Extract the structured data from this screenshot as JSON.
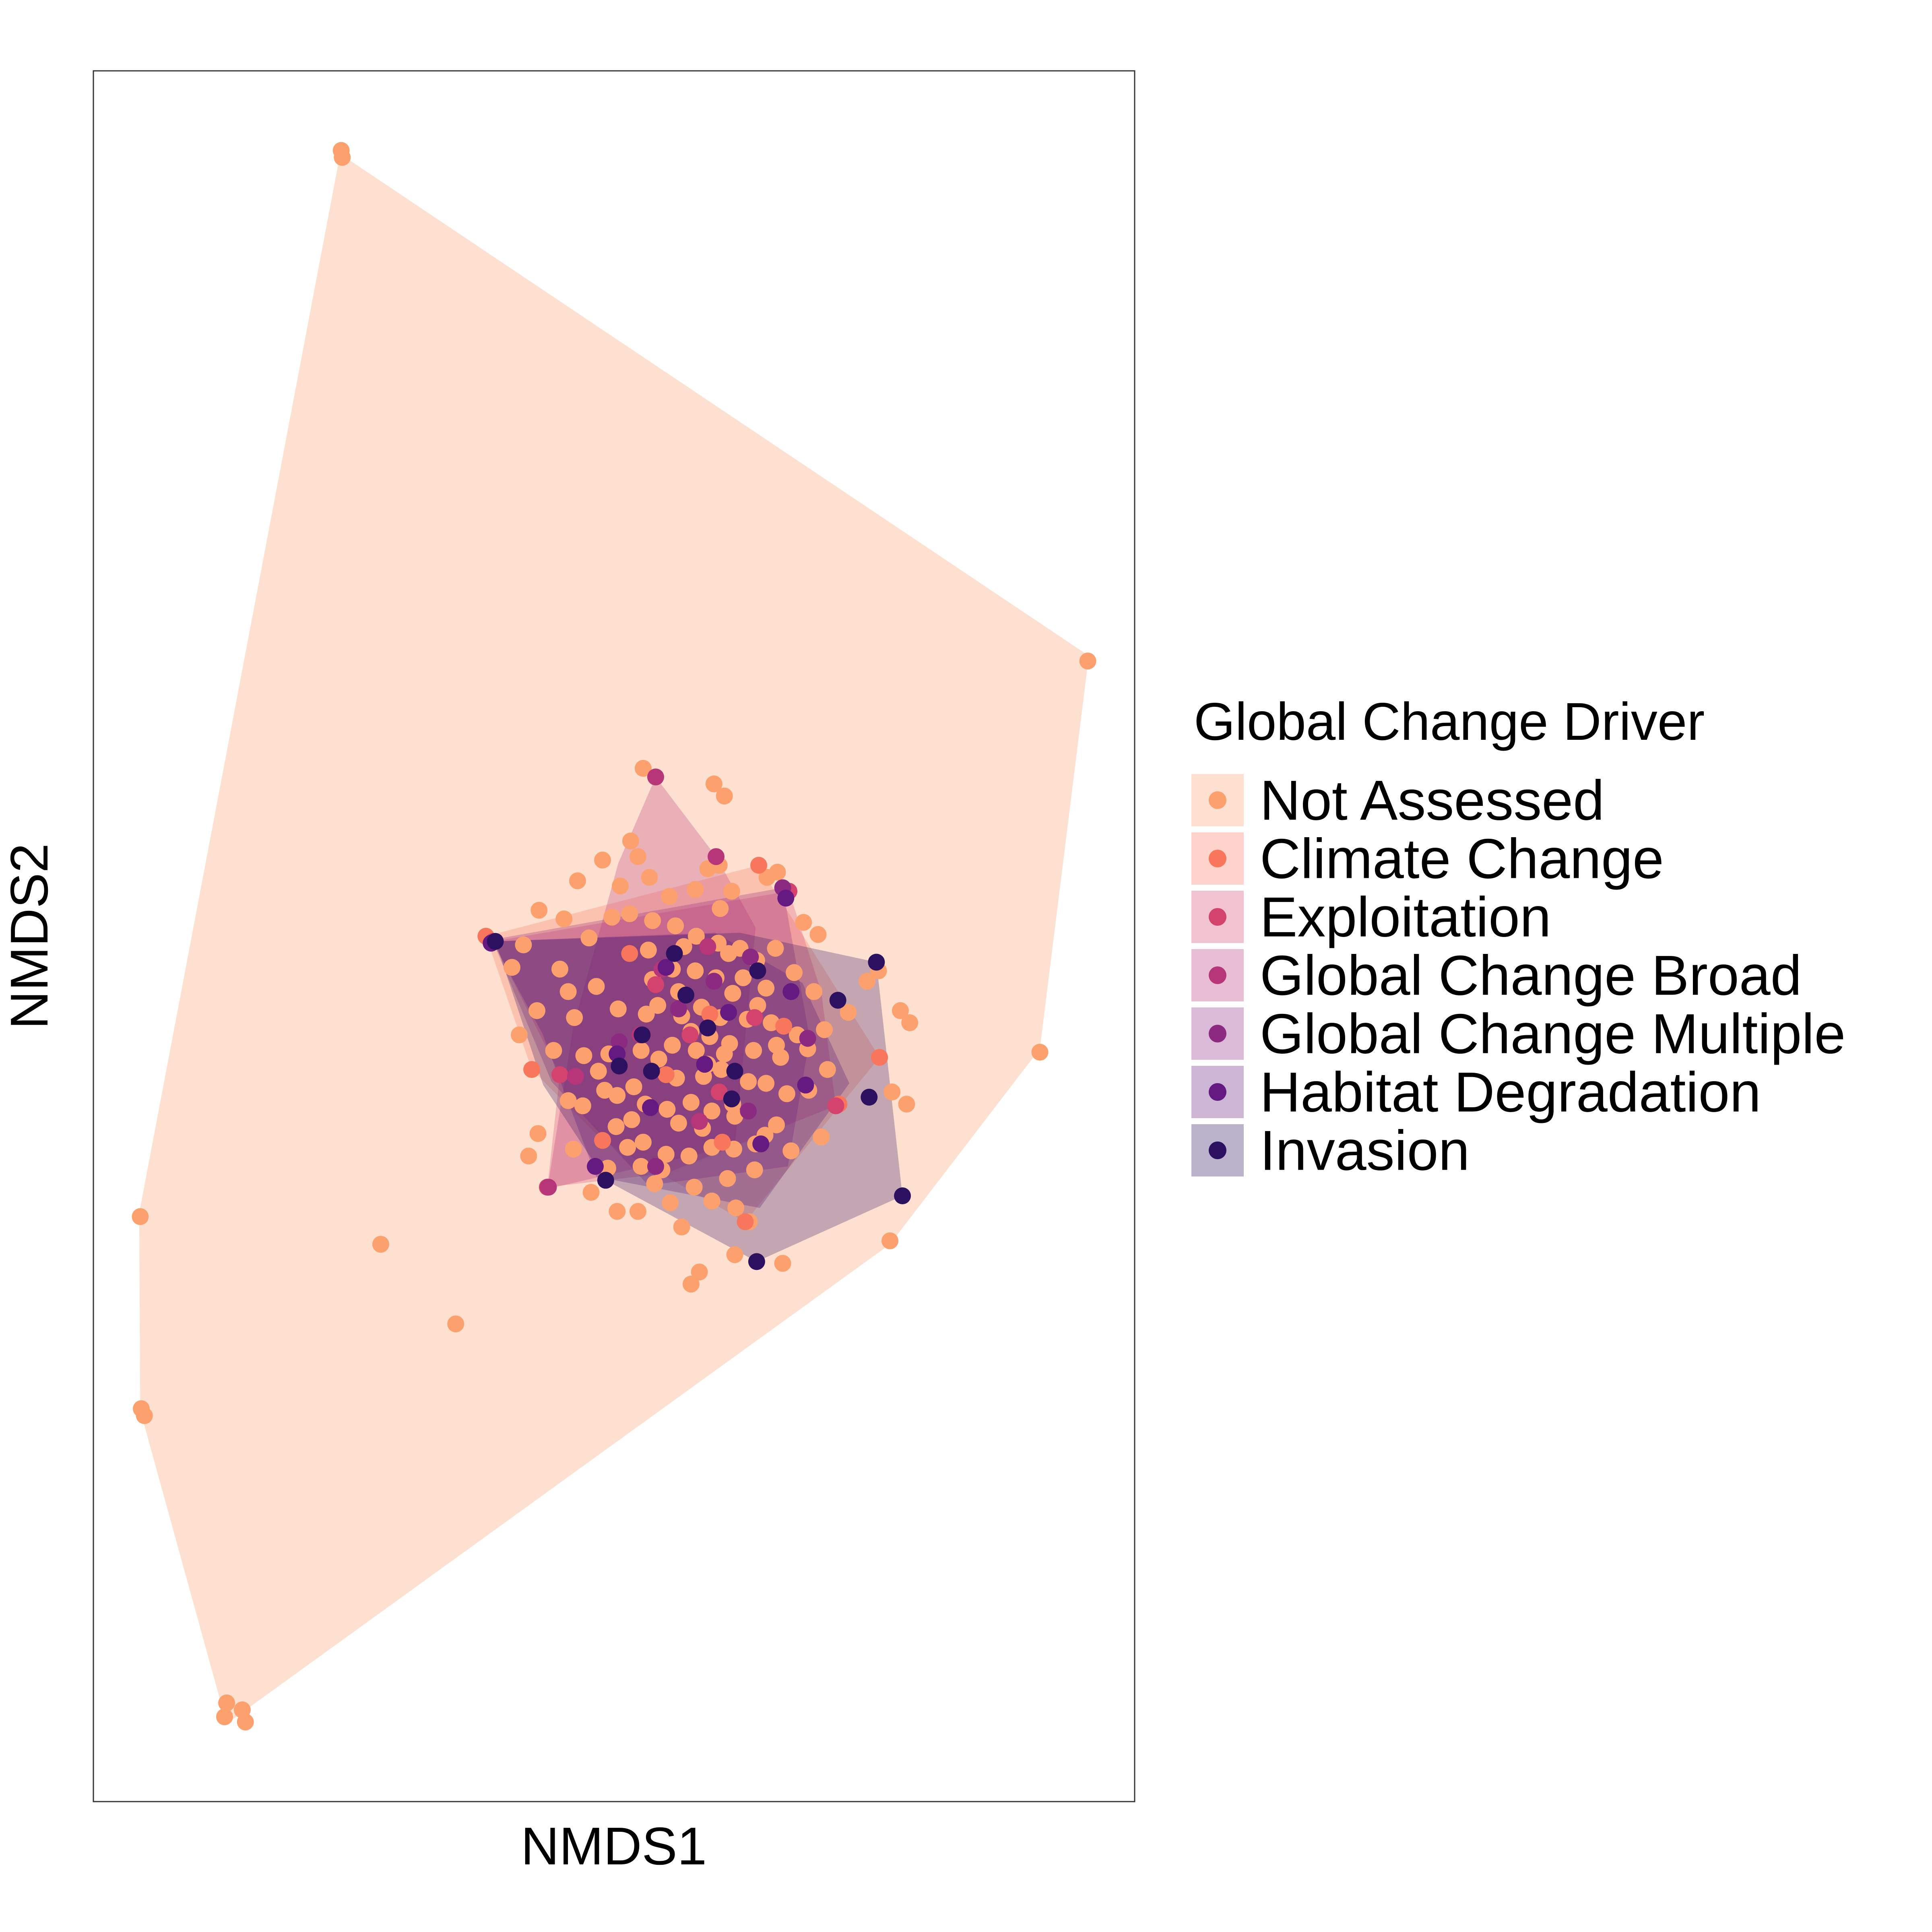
{
  "chart_data": {
    "type": "scatter",
    "title": "",
    "xlabel": "NMDS1",
    "ylabel": "NMDS2",
    "xlim": [
      0,
      100
    ],
    "ylim": [
      0,
      100
    ],
    "axis_ticks": "none",
    "grid": false,
    "legend": {
      "title": "Global Change Driver",
      "placement": "right"
    },
    "series": [
      {
        "name": "Not Assessed",
        "color": "#FCA06E",
        "hull": [
          [
            23.7,
            95.2
          ],
          [
            95.6,
            66.2
          ],
          [
            90.9,
            43.5
          ],
          [
            76.5,
            32.2
          ],
          [
            12.8,
            4.5
          ],
          [
            4.5,
            22.6
          ],
          [
            4.4,
            34.0
          ]
        ],
        "points": [
          [
            23.8,
            95.4
          ],
          [
            23.9,
            95.0
          ],
          [
            95.5,
            65.9
          ],
          [
            90.9,
            43.3
          ],
          [
            76.5,
            32.4
          ],
          [
            12.8,
            5.7
          ],
          [
            12.6,
            4.9
          ],
          [
            14.3,
            5.3
          ],
          [
            14.6,
            4.6
          ],
          [
            4.6,
            22.7
          ],
          [
            4.9,
            22.3
          ],
          [
            4.5,
            33.8
          ],
          [
            27.6,
            32.2
          ],
          [
            34.8,
            27.6
          ],
          [
            59.6,
            58.8
          ],
          [
            60.6,
            58.1
          ],
          [
            52.8,
            59.7
          ],
          [
            51.6,
            55.5
          ],
          [
            52.3,
            54.6
          ],
          [
            60.1,
            54.1
          ],
          [
            60.2,
            51.6
          ],
          [
            64.7,
            53.4
          ],
          [
            65.7,
            53.7
          ],
          [
            68.2,
            50.8
          ],
          [
            69.6,
            50.1
          ],
          [
            75.4,
            48.0
          ],
          [
            78.4,
            45.0
          ],
          [
            77.5,
            45.7
          ],
          [
            78.1,
            40.3
          ],
          [
            76.7,
            41.0
          ],
          [
            68.7,
            41.1
          ],
          [
            64.5,
            38.5
          ],
          [
            63.0,
            33.5
          ],
          [
            66.2,
            31.1
          ],
          [
            57.4,
            29.9
          ],
          [
            58.2,
            30.6
          ],
          [
            61.6,
            31.6
          ],
          [
            61.7,
            34.3
          ],
          [
            56.5,
            33.2
          ],
          [
            53.9,
            35.7
          ],
          [
            51.3,
            37.8
          ],
          [
            50.2,
            39.0
          ],
          [
            49.1,
            41.1
          ],
          [
            48.5,
            42.2
          ],
          [
            46.2,
            45.3
          ],
          [
            45.6,
            46.8
          ],
          [
            44.8,
            48.1
          ],
          [
            47.6,
            49.9
          ],
          [
            49.8,
            51.1
          ],
          [
            51.5,
            51.3
          ],
          [
            53.7,
            50.9
          ],
          [
            55.9,
            50.6
          ],
          [
            57.9,
            50.0
          ],
          [
            60.0,
            49.6
          ],
          [
            62.1,
            49.3
          ],
          [
            63.7,
            48.6
          ],
          [
            64.6,
            47.0
          ],
          [
            65.1,
            45.0
          ],
          [
            66.0,
            43.0
          ],
          [
            66.6,
            40.9
          ],
          [
            65.6,
            39.1
          ],
          [
            63.6,
            38.0
          ],
          [
            61.5,
            37.7
          ],
          [
            59.4,
            37.8
          ],
          [
            57.2,
            37.3
          ],
          [
            55.0,
            37.4
          ],
          [
            52.8,
            38.1
          ],
          [
            51.7,
            39.4
          ],
          [
            51.9,
            41.3
          ],
          [
            52.6,
            43.4
          ],
          [
            53.1,
            45.5
          ],
          [
            53.7,
            47.5
          ],
          [
            55.6,
            48.1
          ],
          [
            57.8,
            48.0
          ],
          [
            59.8,
            47.6
          ],
          [
            61.4,
            46.7
          ],
          [
            62.8,
            45.2
          ],
          [
            63.4,
            43.4
          ],
          [
            62.9,
            41.6
          ],
          [
            61.4,
            40.3
          ],
          [
            59.4,
            39.9
          ],
          [
            57.4,
            40.4
          ],
          [
            56.0,
            41.8
          ],
          [
            55.6,
            43.7
          ],
          [
            56.5,
            45.4
          ],
          [
            58.4,
            45.9
          ],
          [
            60.2,
            45.3
          ],
          [
            61.1,
            43.8
          ],
          [
            60.3,
            42.3
          ],
          [
            58.6,
            41.9
          ],
          [
            57.9,
            43.4
          ],
          [
            59.2,
            44.2
          ],
          [
            60.6,
            43.2
          ],
          [
            59.0,
            42.6
          ],
          [
            57.4,
            44.5
          ],
          [
            54.3,
            42.9
          ],
          [
            55.1,
            40.0
          ],
          [
            54.2,
            46.0
          ],
          [
            56.2,
            46.8
          ],
          [
            62.4,
            47.6
          ],
          [
            65.6,
            43.7
          ],
          [
            64.6,
            41.5
          ],
          [
            58.5,
            38.9
          ],
          [
            53.0,
            40.3
          ],
          [
            50.4,
            45.8
          ],
          [
            48.3,
            47.1
          ],
          [
            53.3,
            49.2
          ],
          [
            56.7,
            49.4
          ],
          [
            61.0,
            49.0
          ],
          [
            63.8,
            46.0
          ],
          [
            56.2,
            39.2
          ],
          [
            54.6,
            36.5
          ],
          [
            50.3,
            40.8
          ],
          [
            47.0,
            40.2
          ],
          [
            60.9,
            36.0
          ],
          [
            63.5,
            36.5
          ],
          [
            67.0,
            37.6
          ],
          [
            69.9,
            38.4
          ],
          [
            70.5,
            42.3
          ],
          [
            72.5,
            45.6
          ],
          [
            74.3,
            47.4
          ],
          [
            67.6,
            44.3
          ],
          [
            57.7,
            35.5
          ],
          [
            55.4,
            34.6
          ],
          [
            52.6,
            36.7
          ],
          [
            49.4,
            36.6
          ],
          [
            45.6,
            40.5
          ],
          [
            47.1,
            43.1
          ],
          [
            42.6,
            45.7
          ],
          [
            40.9,
            44.3
          ],
          [
            40.2,
            48.2
          ],
          [
            41.3,
            49.5
          ],
          [
            42.8,
            51.5
          ],
          [
            45.2,
            51.0
          ],
          [
            46.5,
            53.2
          ],
          [
            48.9,
            54.4
          ],
          [
            50.6,
            52.9
          ],
          [
            53.4,
            53.4
          ],
          [
            55.3,
            52.3
          ],
          [
            57.8,
            52.7
          ],
          [
            59.0,
            53.9
          ],
          [
            61.3,
            52.6
          ],
          [
            65.5,
            49.3
          ],
          [
            67.3,
            47.9
          ],
          [
            69.2,
            46.8
          ],
          [
            70.2,
            44.6
          ],
          [
            68.6,
            43.5
          ],
          [
            59.4,
            34.7
          ],
          [
            61.6,
            39.6
          ],
          [
            49.5,
            43.2
          ],
          [
            44.2,
            43.4
          ],
          [
            41.8,
            37.3
          ],
          [
            42.7,
            38.6
          ],
          [
            46.1,
            37.7
          ],
          [
            47.8,
            35.2
          ],
          [
            50.3,
            34.1
          ],
          [
            52.3,
            34.1
          ]
        ]
      },
      {
        "name": "Climate Change",
        "color": "#F8765C",
        "hull": [
          [
            37.7,
            50.0
          ],
          [
            63.9,
            54.1
          ],
          [
            75.5,
            43.0
          ],
          [
            62.6,
            33.5
          ],
          [
            48.9,
            38.2
          ],
          [
            42.1,
            42.3
          ]
        ],
        "points": [
          [
            37.7,
            50.0
          ],
          [
            63.9,
            54.1
          ],
          [
            75.5,
            43.0
          ],
          [
            62.6,
            33.5
          ],
          [
            48.9,
            38.2
          ],
          [
            42.1,
            42.3
          ],
          [
            51.5,
            49.0
          ],
          [
            59.2,
            45.5
          ],
          [
            66.3,
            44.8
          ],
          [
            55.0,
            42.0
          ],
          [
            60.4,
            38.1
          ],
          [
            71.6,
            40.3
          ]
        ]
      },
      {
        "name": "Exploitation",
        "color": "#D3436E",
        "hull": [
          [
            38.4,
            49.7
          ],
          [
            66.8,
            52.6
          ],
          [
            69.9,
            46.8
          ],
          [
            71.3,
            40.2
          ],
          [
            55.0,
            36.3
          ],
          [
            43.6,
            35.5
          ],
          [
            44.8,
            42.0
          ]
        ],
        "points": [
          [
            38.4,
            49.7
          ],
          [
            66.8,
            52.6
          ],
          [
            71.3,
            40.2
          ],
          [
            43.6,
            35.5
          ],
          [
            44.8,
            42.0
          ],
          [
            54.0,
            47.2
          ],
          [
            60.1,
            41.0
          ],
          [
            63.5,
            45.3
          ],
          [
            57.3,
            44.3
          ]
        ]
      },
      {
        "name": "Global Change Broad",
        "color": "#B63679",
        "hull": [
          [
            54.0,
            59.2
          ],
          [
            59.8,
            54.6
          ],
          [
            63.6,
            50.5
          ],
          [
            61.6,
            37.9
          ],
          [
            43.6,
            35.4
          ],
          [
            46.1,
            44.8
          ],
          [
            50.4,
            54.2
          ]
        ],
        "points": [
          [
            54.0,
            59.2
          ],
          [
            59.8,
            54.6
          ],
          [
            43.7,
            35.5
          ],
          [
            46.3,
            41.9
          ],
          [
            59.0,
            49.4
          ],
          [
            54.6,
            48.1
          ],
          [
            52.5,
            44.3
          ],
          [
            58.2,
            39.3
          ]
        ]
      },
      {
        "name": "Global Change Multiple",
        "color": "#8C2981",
        "hull": [
          [
            38.3,
            49.8
          ],
          [
            66.2,
            52.8
          ],
          [
            68.8,
            44.1
          ],
          [
            66.7,
            36.7
          ],
          [
            53.3,
            35.6
          ],
          [
            44.0,
            41.6
          ]
        ],
        "points": [
          [
            63.1,
            48.8
          ],
          [
            66.2,
            52.8
          ],
          [
            68.6,
            44.1
          ],
          [
            62.9,
            39.9
          ],
          [
            54.0,
            36.7
          ],
          [
            50.5,
            43.9
          ],
          [
            56.2,
            45.8
          ],
          [
            59.6,
            47.4
          ]
        ]
      },
      {
        "name": "Habitat Degradation",
        "color": "#641A80",
        "hull": [
          [
            38.3,
            49.7
          ],
          [
            59.7,
            50.2
          ],
          [
            68.1,
            47.3
          ],
          [
            72.6,
            41.5
          ],
          [
            64.0,
            34.3
          ],
          [
            48.3,
            36.1
          ],
          [
            43.1,
            44.4
          ]
        ],
        "points": [
          [
            38.2,
            49.6
          ],
          [
            66.5,
            52.2
          ],
          [
            68.4,
            41.4
          ],
          [
            64.1,
            38.0
          ],
          [
            48.2,
            36.7
          ],
          [
            50.3,
            43.2
          ],
          [
            55.0,
            48.2
          ],
          [
            61.0,
            45.6
          ],
          [
            58.7,
            42.6
          ],
          [
            67.0,
            46.8
          ],
          [
            53.5,
            40.1
          ]
        ]
      },
      {
        "name": "Invasion",
        "color": "#2C1160",
        "hull": [
          [
            38.6,
            49.7
          ],
          [
            62.1,
            50.2
          ],
          [
            75.2,
            48.5
          ],
          [
            77.7,
            35.0
          ],
          [
            63.7,
            31.2
          ],
          [
            49.2,
            35.9
          ],
          [
            43.2,
            41.4
          ]
        ],
        "points": [
          [
            38.6,
            49.7
          ],
          [
            75.2,
            48.5
          ],
          [
            77.7,
            35.0
          ],
          [
            63.7,
            31.2
          ],
          [
            49.2,
            35.9
          ],
          [
            55.8,
            49.0
          ],
          [
            63.8,
            48.0
          ],
          [
            52.7,
            44.3
          ],
          [
            59.0,
            44.7
          ],
          [
            61.3,
            40.6
          ],
          [
            53.6,
            42.2
          ],
          [
            56.9,
            46.6
          ],
          [
            50.5,
            42.5
          ],
          [
            61.6,
            42.2
          ],
          [
            71.5,
            46.3
          ],
          [
            74.5,
            40.7
          ]
        ]
      }
    ]
  }
}
